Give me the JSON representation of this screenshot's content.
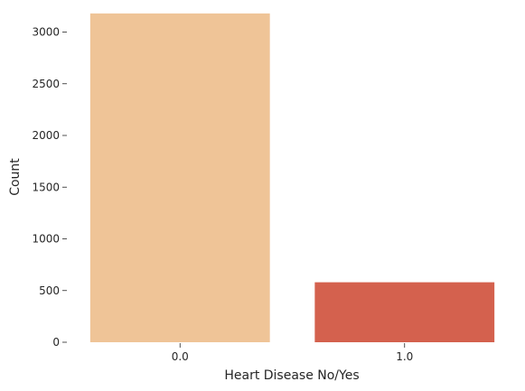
{
  "chart_data": {
    "type": "bar",
    "categories": [
      "0.0",
      "1.0"
    ],
    "values": [
      3180,
      580
    ],
    "colors": [
      "#efc497",
      "#d4614e"
    ],
    "xlabel": "Heart Disease No/Yes",
    "ylabel": "Count",
    "ylim": [
      0,
      3200
    ],
    "yticks": [
      0,
      500,
      1000,
      1500,
      2000,
      2500,
      3000
    ],
    "grid": false,
    "legend": "none"
  }
}
